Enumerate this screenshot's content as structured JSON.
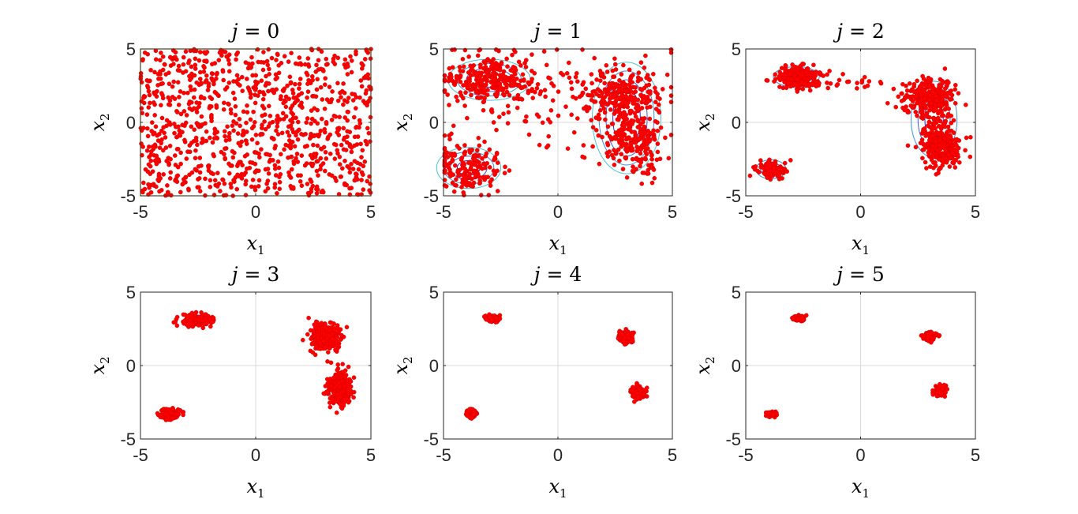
{
  "figure": {
    "background": "#ffffff"
  },
  "style": {
    "point_color": "#ff0000",
    "point_edge": "#cc0000",
    "contour_colors": [
      "#2b2bd6",
      "#3a5fd8",
      "#3f8fd8",
      "#46c3cf",
      "#8fe08a",
      "#e6e63a"
    ],
    "axis_color": "#262626",
    "grid_color": "#d9d9d9",
    "domain_box_color": "#c8c800"
  },
  "chart_data": [
    {
      "type": "scatter",
      "title": {
        "var": "j",
        "eq": " = ",
        "val": "0"
      },
      "xlabel": {
        "base": "x",
        "sub": "1"
      },
      "ylabel": {
        "base": "x",
        "sub": "2"
      },
      "xlim": [
        -5,
        5
      ],
      "ylim": [
        -5,
        5
      ],
      "xticks": [
        "-5",
        "0",
        "5"
      ],
      "yticks": [
        "-5",
        "0",
        "5"
      ],
      "grid": true,
      "domain_box": [
        -5,
        5,
        -5,
        5
      ],
      "distribution": "uniform",
      "n_points": 1000,
      "clusters": [],
      "contours": []
    },
    {
      "type": "scatter",
      "title": {
        "var": "j",
        "eq": " = ",
        "val": "1"
      },
      "xlabel": {
        "base": "x",
        "sub": "1"
      },
      "ylabel": {
        "base": "x",
        "sub": "2"
      },
      "xlim": [
        -5,
        5
      ],
      "ylim": [
        -5,
        5
      ],
      "xticks": [
        "-5",
        "0",
        "5"
      ],
      "yticks": [
        "-5",
        "0",
        "5"
      ],
      "grid": true,
      "n_points": 1000,
      "clusters": [
        {
          "cx": -3.0,
          "cy": 2.9,
          "sx": 1.0,
          "sy": 0.8,
          "w": 0.28
        },
        {
          "cx": 2.8,
          "cy": 1.9,
          "sx": 0.8,
          "sy": 0.9,
          "w": 0.22
        },
        {
          "cx": 3.3,
          "cy": -1.2,
          "sx": 0.7,
          "sy": 1.2,
          "w": 0.22
        },
        {
          "cx": -3.9,
          "cy": -3.1,
          "sx": 0.8,
          "sy": 0.8,
          "w": 0.16
        },
        {
          "cx": 0.0,
          "cy": 1.5,
          "sx": 2.8,
          "sy": 1.8,
          "w": 0.12
        }
      ],
      "contours": [
        {
          "cx": -3.0,
          "cy": 2.9,
          "rx": [
            0.6,
            1.0,
            1.4,
            1.8
          ],
          "ry": [
            0.5,
            0.8,
            1.1,
            1.4
          ]
        },
        {
          "cx": 3.0,
          "cy": 0.3,
          "rx": [
            0.6,
            0.9,
            1.2,
            1.5
          ],
          "ry": [
            2.0,
            2.6,
            3.2,
            3.8
          ]
        },
        {
          "cx": -3.9,
          "cy": -3.1,
          "rx": [
            0.5,
            0.8,
            1.1,
            1.4
          ],
          "ry": [
            0.5,
            0.8,
            1.1,
            1.4
          ]
        }
      ]
    },
    {
      "type": "scatter",
      "title": {
        "var": "j",
        "eq": " = ",
        "val": "2"
      },
      "xlabel": {
        "base": "x",
        "sub": "1"
      },
      "ylabel": {
        "base": "x",
        "sub": "2"
      },
      "xlim": [
        -5,
        5
      ],
      "ylim": [
        -5,
        5
      ],
      "xticks": [
        "-5",
        "0",
        "5"
      ],
      "yticks": [
        "-5",
        "0",
        "5"
      ],
      "grid": true,
      "n_points": 1000,
      "clusters": [
        {
          "cx": -2.8,
          "cy": 3.1,
          "sx": 0.45,
          "sy": 0.35,
          "w": 0.25
        },
        {
          "cx": 3.0,
          "cy": 1.7,
          "sx": 0.55,
          "sy": 0.6,
          "w": 0.3
        },
        {
          "cx": 3.5,
          "cy": -1.5,
          "sx": 0.4,
          "sy": 0.8,
          "w": 0.3
        },
        {
          "cx": -3.9,
          "cy": -3.2,
          "sx": 0.3,
          "sy": 0.3,
          "w": 0.12
        },
        {
          "cx": -1.0,
          "cy": 2.7,
          "sx": 0.9,
          "sy": 0.35,
          "w": 0.03
        }
      ],
      "contours": [
        {
          "cx": -2.8,
          "cy": 3.1,
          "rx": [
            0.4,
            0.7,
            1.0
          ],
          "ry": [
            0.3,
            0.5,
            0.7
          ]
        },
        {
          "cx": 3.2,
          "cy": 0.2,
          "rx": [
            0.4,
            0.7,
            1.0
          ],
          "ry": [
            1.5,
            2.0,
            2.6
          ]
        },
        {
          "cx": -3.9,
          "cy": -3.2,
          "rx": [
            0.25,
            0.45,
            0.65
          ],
          "ry": [
            0.25,
            0.45,
            0.65
          ]
        }
      ]
    },
    {
      "type": "scatter",
      "title": {
        "var": "j",
        "eq": " = ",
        "val": "3"
      },
      "xlabel": {
        "base": "x",
        "sub": "1"
      },
      "ylabel": {
        "base": "x",
        "sub": "2"
      },
      "xlim": [
        -5,
        5
      ],
      "ylim": [
        -5,
        5
      ],
      "xticks": [
        "-5",
        "0",
        "5"
      ],
      "yticks": [
        "-5",
        "0",
        "5"
      ],
      "grid": true,
      "n_points": 1000,
      "clusters": [
        {
          "cx": -2.6,
          "cy": 3.1,
          "sx": 0.35,
          "sy": 0.2,
          "w": 0.22
        },
        {
          "cx": 3.0,
          "cy": 1.9,
          "sx": 0.3,
          "sy": 0.45,
          "w": 0.32
        },
        {
          "cx": 3.6,
          "cy": -1.6,
          "sx": 0.25,
          "sy": 0.55,
          "w": 0.32
        },
        {
          "cx": -3.7,
          "cy": -3.3,
          "sx": 0.2,
          "sy": 0.2,
          "w": 0.14
        }
      ],
      "contours": [
        {
          "cx": -2.6,
          "cy": 3.1,
          "rx": [
            0.3,
            0.5
          ],
          "ry": [
            0.2,
            0.35
          ]
        },
        {
          "cx": -3.7,
          "cy": -3.3,
          "rx": [
            0.2,
            0.35
          ],
          "ry": [
            0.2,
            0.35
          ]
        }
      ]
    },
    {
      "type": "scatter",
      "title": {
        "var": "j",
        "eq": " = ",
        "val": "4"
      },
      "xlabel": {
        "base": "x",
        "sub": "1"
      },
      "ylabel": {
        "base": "x",
        "sub": "2"
      },
      "xlim": [
        -5,
        5
      ],
      "ylim": [
        -5,
        5
      ],
      "xticks": [
        "-5",
        "0",
        "5"
      ],
      "yticks": [
        "-5",
        "0",
        "5"
      ],
      "grid": true,
      "n_points": 600,
      "clusters": [
        {
          "cx": -2.8,
          "cy": 3.2,
          "sx": 0.15,
          "sy": 0.1,
          "w": 0.25
        },
        {
          "cx": 2.9,
          "cy": 1.9,
          "sx": 0.15,
          "sy": 0.18,
          "w": 0.25
        },
        {
          "cx": 3.5,
          "cy": -1.8,
          "sx": 0.15,
          "sy": 0.2,
          "w": 0.3
        },
        {
          "cx": -3.8,
          "cy": -3.3,
          "sx": 0.1,
          "sy": 0.12,
          "w": 0.2
        }
      ],
      "contours": []
    },
    {
      "type": "scatter",
      "title": {
        "var": "j",
        "eq": " = ",
        "val": "5"
      },
      "xlabel": {
        "base": "x",
        "sub": "1"
      },
      "ylabel": {
        "base": "x",
        "sub": "2"
      },
      "xlim": [
        -5,
        5
      ],
      "ylim": [
        -5,
        5
      ],
      "xticks": [
        "-5",
        "0",
        "5"
      ],
      "yticks": [
        "-5",
        "0",
        "5"
      ],
      "grid": true,
      "n_points": 500,
      "clusters": [
        {
          "cx": -2.7,
          "cy": 3.2,
          "sx": 0.12,
          "sy": 0.08,
          "w": 0.25
        },
        {
          "cx": 3.0,
          "cy": 2.0,
          "sx": 0.12,
          "sy": 0.14,
          "w": 0.25
        },
        {
          "cx": 3.5,
          "cy": -1.7,
          "sx": 0.1,
          "sy": 0.18,
          "w": 0.3
        },
        {
          "cx": -3.9,
          "cy": -3.3,
          "sx": 0.1,
          "sy": 0.08,
          "w": 0.2
        }
      ],
      "contours": []
    }
  ]
}
